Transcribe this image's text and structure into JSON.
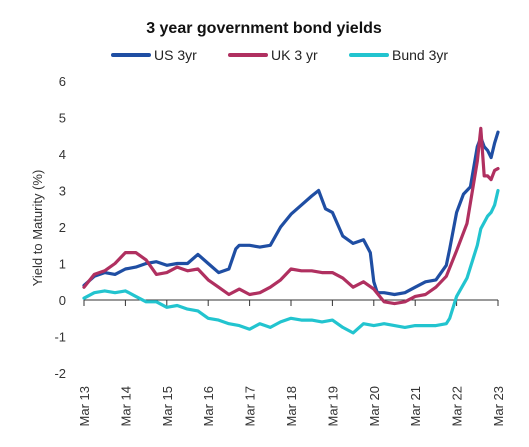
{
  "chart_data": {
    "type": "line",
    "title": "3 year government bond yields",
    "xlabel": "",
    "ylabel": "Yield to Maturity (%)",
    "ylim": [
      -2,
      6
    ],
    "yticks": [
      "6",
      "5",
      "4",
      "3",
      "2",
      "1",
      "0",
      "-1",
      "-2"
    ],
    "x_tick_labels": [
      "Mar 13",
      "Mar 14",
      "Mar 15",
      "Mar 16",
      "Mar 17",
      "Mar 18",
      "Mar 19",
      "Mar 20",
      "Mar 21",
      "Mar 22",
      "Mar 23"
    ],
    "xlim": [
      "2013-03",
      "2023-03"
    ],
    "grid": false,
    "legend_position": "top",
    "series": [
      {
        "name": "US 3yr",
        "color": "#1f4ea3",
        "x": [
          "2013-03",
          "2013-06",
          "2013-09",
          "2013-12",
          "2014-03",
          "2014-06",
          "2014-09",
          "2014-12",
          "2015-03",
          "2015-06",
          "2015-09",
          "2015-12",
          "2016-03",
          "2016-06",
          "2016-09",
          "2016-11",
          "2016-12",
          "2017-03",
          "2017-06",
          "2017-09",
          "2017-12",
          "2018-03",
          "2018-06",
          "2018-09",
          "2018-11",
          "2019-01",
          "2019-03",
          "2019-06",
          "2019-09",
          "2019-12",
          "2020-02",
          "2020-03",
          "2020-04",
          "2020-06",
          "2020-09",
          "2020-12",
          "2021-03",
          "2021-06",
          "2021-09",
          "2021-12",
          "2022-01",
          "2022-03",
          "2022-05",
          "2022-07",
          "2022-09",
          "2022-10",
          "2022-11",
          "2022-12",
          "2023-01",
          "2023-02",
          "2023-03"
        ],
        "values": [
          0.4,
          0.65,
          0.75,
          0.7,
          0.85,
          0.9,
          1.0,
          1.05,
          0.95,
          1.0,
          1.0,
          1.25,
          1.0,
          0.75,
          0.85,
          1.4,
          1.5,
          1.5,
          1.45,
          1.5,
          2.0,
          2.35,
          2.6,
          2.85,
          3.0,
          2.5,
          2.4,
          1.75,
          1.55,
          1.65,
          1.3,
          0.5,
          0.2,
          0.2,
          0.15,
          0.2,
          0.35,
          0.5,
          0.55,
          0.95,
          1.4,
          2.4,
          2.9,
          3.1,
          4.2,
          4.45,
          4.2,
          4.1,
          3.9,
          4.3,
          4.6
        ]
      },
      {
        "name": "UK 3 yr",
        "color": "#b03060",
        "x": [
          "2013-03",
          "2013-06",
          "2013-09",
          "2013-12",
          "2014-03",
          "2014-06",
          "2014-09",
          "2014-12",
          "2015-03",
          "2015-06",
          "2015-09",
          "2015-12",
          "2016-03",
          "2016-06",
          "2016-09",
          "2016-12",
          "2017-03",
          "2017-06",
          "2017-09",
          "2017-12",
          "2018-03",
          "2018-06",
          "2018-09",
          "2018-12",
          "2019-03",
          "2019-06",
          "2019-09",
          "2019-12",
          "2020-03",
          "2020-06",
          "2020-09",
          "2020-12",
          "2021-03",
          "2021-06",
          "2021-09",
          "2021-12",
          "2022-03",
          "2022-06",
          "2022-09",
          "2022-10",
          "2022-11",
          "2022-12",
          "2023-01",
          "2023-02",
          "2023-03"
        ],
        "values": [
          0.35,
          0.7,
          0.8,
          1.0,
          1.3,
          1.3,
          1.1,
          0.7,
          0.75,
          0.9,
          0.8,
          0.85,
          0.55,
          0.35,
          0.15,
          0.3,
          0.15,
          0.2,
          0.35,
          0.55,
          0.85,
          0.8,
          0.8,
          0.75,
          0.75,
          0.6,
          0.35,
          0.5,
          0.3,
          -0.05,
          -0.1,
          -0.05,
          0.1,
          0.15,
          0.35,
          0.65,
          1.35,
          2.1,
          3.8,
          4.7,
          3.4,
          3.4,
          3.3,
          3.55,
          3.6
        ]
      },
      {
        "name": "Bund 3yr",
        "color": "#22c4cf",
        "x": [
          "2013-03",
          "2013-06",
          "2013-09",
          "2013-12",
          "2014-03",
          "2014-06",
          "2014-09",
          "2014-12",
          "2015-03",
          "2015-06",
          "2015-09",
          "2015-12",
          "2016-03",
          "2016-06",
          "2016-09",
          "2016-12",
          "2017-03",
          "2017-06",
          "2017-09",
          "2017-12",
          "2018-03",
          "2018-06",
          "2018-09",
          "2018-12",
          "2019-03",
          "2019-06",
          "2019-09",
          "2019-12",
          "2020-03",
          "2020-06",
          "2020-09",
          "2020-12",
          "2021-03",
          "2021-06",
          "2021-09",
          "2021-12",
          "2022-01",
          "2022-03",
          "2022-06",
          "2022-09",
          "2022-10",
          "2022-12",
          "2023-01",
          "2023-02",
          "2023-03"
        ],
        "values": [
          0.05,
          0.2,
          0.25,
          0.2,
          0.25,
          0.1,
          -0.05,
          -0.05,
          -0.2,
          -0.15,
          -0.25,
          -0.3,
          -0.5,
          -0.55,
          -0.65,
          -0.7,
          -0.8,
          -0.65,
          -0.75,
          -0.6,
          -0.5,
          -0.55,
          -0.55,
          -0.6,
          -0.55,
          -0.75,
          -0.9,
          -0.65,
          -0.7,
          -0.65,
          -0.7,
          -0.75,
          -0.7,
          -0.7,
          -0.7,
          -0.65,
          -0.5,
          0.1,
          0.6,
          1.5,
          1.95,
          2.3,
          2.4,
          2.6,
          3.0
        ]
      }
    ]
  }
}
